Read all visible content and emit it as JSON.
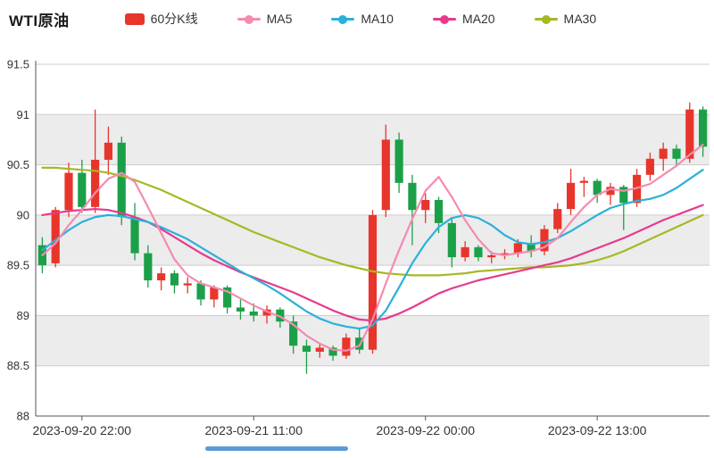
{
  "title": "WTI原油",
  "legend": {
    "items": [
      {
        "label": "60分K线",
        "color": "#e8352c",
        "type": "candlestick"
      },
      {
        "label": "MA5",
        "color": "#f48bb0",
        "type": "line"
      },
      {
        "label": "MA10",
        "color": "#2bb1d9",
        "type": "line"
      },
      {
        "label": "MA20",
        "color": "#e53b8d",
        "type": "line"
      },
      {
        "label": "MA30",
        "color": "#a7b824",
        "type": "line"
      }
    ]
  },
  "scrollbar": {
    "color": "#5b9bd5"
  },
  "chart_data": {
    "type": "candlestick",
    "title": "WTI原油",
    "interval": "60min",
    "ylim": [
      88,
      91.5
    ],
    "y_ticks": [
      88,
      88.5,
      89,
      89.5,
      90,
      90.5,
      91,
      91.5
    ],
    "grid": true,
    "legend_position": "top",
    "x_axis_labels": [
      {
        "index": 3,
        "label": "2023-09-20 22:00"
      },
      {
        "index": 16,
        "label": "2023-09-21 11:00"
      },
      {
        "index": 29,
        "label": "2023-09-22 00:00"
      },
      {
        "index": 42,
        "label": "2023-09-22 13:00"
      }
    ],
    "colors": {
      "up": "#e8352c",
      "down": "#1ba049",
      "band": "#ececec"
    },
    "candle_format": "[open, high, low, close]",
    "candles": [
      [
        89.7,
        89.78,
        89.42,
        89.5
      ],
      [
        89.52,
        90.08,
        89.48,
        90.05
      ],
      [
        90.05,
        90.52,
        89.98,
        90.42
      ],
      [
        90.42,
        90.55,
        90.02,
        90.08
      ],
      [
        90.08,
        91.05,
        90.02,
        90.55
      ],
      [
        90.55,
        90.88,
        90.4,
        90.72
      ],
      [
        90.72,
        90.78,
        89.9,
        89.98
      ],
      [
        89.98,
        90.12,
        89.55,
        89.62
      ],
      [
        89.62,
        89.7,
        89.28,
        89.35
      ],
      [
        89.35,
        89.48,
        89.25,
        89.42
      ],
      [
        89.42,
        89.45,
        89.22,
        89.3
      ],
      [
        89.3,
        89.38,
        89.22,
        89.32
      ],
      [
        89.32,
        89.35,
        89.1,
        89.16
      ],
      [
        89.16,
        89.3,
        89.08,
        89.28
      ],
      [
        89.28,
        89.3,
        89.02,
        89.08
      ],
      [
        89.08,
        89.16,
        88.96,
        89.04
      ],
      [
        89.04,
        89.12,
        88.94,
        89.0
      ],
      [
        89.0,
        89.1,
        88.92,
        89.06
      ],
      [
        89.06,
        89.08,
        88.88,
        88.94
      ],
      [
        88.94,
        89.0,
        88.62,
        88.7
      ],
      [
        88.7,
        88.76,
        88.42,
        88.64
      ],
      [
        88.64,
        88.72,
        88.58,
        88.68
      ],
      [
        88.68,
        88.7,
        88.55,
        88.6
      ],
      [
        88.6,
        88.82,
        88.57,
        88.78
      ],
      [
        88.78,
        88.88,
        88.62,
        88.66
      ],
      [
        88.66,
        90.05,
        88.62,
        90.0
      ],
      [
        90.05,
        90.9,
        89.98,
        90.75
      ],
      [
        90.75,
        90.82,
        90.22,
        90.32
      ],
      [
        90.32,
        90.4,
        89.7,
        90.05
      ],
      [
        90.05,
        90.22,
        89.92,
        90.15
      ],
      [
        90.15,
        90.18,
        89.82,
        89.92
      ],
      [
        89.92,
        89.98,
        89.48,
        89.58
      ],
      [
        89.58,
        89.74,
        89.54,
        89.68
      ],
      [
        89.68,
        89.7,
        89.54,
        89.58
      ],
      [
        89.58,
        89.64,
        89.52,
        89.6
      ],
      [
        89.6,
        89.66,
        89.56,
        89.62
      ],
      [
        89.62,
        89.76,
        89.58,
        89.72
      ],
      [
        89.72,
        89.8,
        89.58,
        89.64
      ],
      [
        89.64,
        89.9,
        89.6,
        89.86
      ],
      [
        89.86,
        90.12,
        89.82,
        90.06
      ],
      [
        90.06,
        90.46,
        90.0,
        90.32
      ],
      [
        90.32,
        90.38,
        90.18,
        90.34
      ],
      [
        90.34,
        90.36,
        90.12,
        90.2
      ],
      [
        90.2,
        90.32,
        90.1,
        90.28
      ],
      [
        90.28,
        90.3,
        89.85,
        90.12
      ],
      [
        90.12,
        90.46,
        90.08,
        90.4
      ],
      [
        90.4,
        90.62,
        90.34,
        90.56
      ],
      [
        90.56,
        90.72,
        90.44,
        90.66
      ],
      [
        90.66,
        90.7,
        90.48,
        90.56
      ],
      [
        90.56,
        91.12,
        90.52,
        91.05
      ],
      [
        91.05,
        91.08,
        90.58,
        90.68
      ]
    ],
    "series": [
      {
        "name": "MA5",
        "color": "#f48bb0",
        "values": [
          89.6,
          89.72,
          89.9,
          90.05,
          90.22,
          90.36,
          90.42,
          90.33,
          90.08,
          89.82,
          89.56,
          89.4,
          89.32,
          89.28,
          89.24,
          89.17,
          89.1,
          89.04,
          88.99,
          88.91,
          88.8,
          88.72,
          88.66,
          88.65,
          88.7,
          88.96,
          89.32,
          89.65,
          89.96,
          90.24,
          90.38,
          90.18,
          89.95,
          89.76,
          89.62,
          89.6,
          89.62,
          89.64,
          89.68,
          89.77,
          89.93,
          90.08,
          90.2,
          90.26,
          90.24,
          90.27,
          90.31,
          90.4,
          90.49,
          90.6,
          90.7
        ]
      },
      {
        "name": "MA10",
        "color": "#2bb1d9",
        "values": [
          89.65,
          89.75,
          89.85,
          89.93,
          89.98,
          90.0,
          89.99,
          89.96,
          89.93,
          89.88,
          89.82,
          89.76,
          89.68,
          89.6,
          89.52,
          89.44,
          89.37,
          89.3,
          89.22,
          89.13,
          89.04,
          88.97,
          88.92,
          88.89,
          88.87,
          88.9,
          89.05,
          89.28,
          89.52,
          89.72,
          89.88,
          89.97,
          90.0,
          89.97,
          89.9,
          89.8,
          89.73,
          89.71,
          89.73,
          89.77,
          89.84,
          89.92,
          90.0,
          90.07,
          90.11,
          90.14,
          90.16,
          90.2,
          90.27,
          90.36,
          90.45
        ]
      },
      {
        "name": "MA20",
        "color": "#e53b8d",
        "values": [
          90.0,
          90.02,
          90.04,
          90.05,
          90.06,
          90.05,
          90.02,
          89.98,
          89.93,
          89.86,
          89.78,
          89.7,
          89.62,
          89.55,
          89.49,
          89.43,
          89.38,
          89.33,
          89.28,
          89.23,
          89.17,
          89.11,
          89.05,
          89.0,
          88.96,
          88.95,
          88.97,
          89.02,
          89.08,
          89.15,
          89.22,
          89.27,
          89.31,
          89.35,
          89.38,
          89.41,
          89.44,
          89.47,
          89.5,
          89.53,
          89.57,
          89.62,
          89.67,
          89.72,
          89.77,
          89.83,
          89.89,
          89.95,
          90.0,
          90.05,
          90.1
        ]
      },
      {
        "name": "MA30",
        "color": "#a7b824",
        "values": [
          90.47,
          90.47,
          90.46,
          90.45,
          90.44,
          90.42,
          90.39,
          90.35,
          90.3,
          90.25,
          90.19,
          90.13,
          90.07,
          90.01,
          89.95,
          89.89,
          89.83,
          89.78,
          89.73,
          89.68,
          89.63,
          89.58,
          89.54,
          89.5,
          89.47,
          89.44,
          89.42,
          89.41,
          89.4,
          89.4,
          89.4,
          89.41,
          89.42,
          89.44,
          89.45,
          89.46,
          89.47,
          89.48,
          89.48,
          89.49,
          89.5,
          89.52,
          89.55,
          89.59,
          89.64,
          89.7,
          89.76,
          89.82,
          89.88,
          89.94,
          90.0
        ]
      }
    ]
  }
}
